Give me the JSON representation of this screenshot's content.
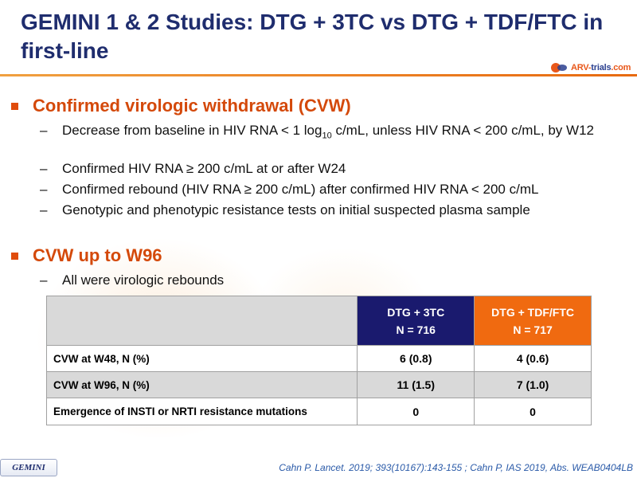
{
  "title": "GEMINI 1 & 2 Studies: DTG + 3TC vs DTG + TDF/FTC in first-line",
  "logo": {
    "part1": "ARV-",
    "part2": "trials",
    "part3": ".com"
  },
  "section1": {
    "heading": "Confirmed virologic withdrawal (CVW)",
    "items": [
      {
        "pre": "Decrease from baseline in HIV RNA < 1 log",
        "sub": "10",
        "post": " c/mL, unless HIV RNA < 200 c/mL, by W12"
      },
      {
        "text": "Confirmed HIV RNA ≥ 200 c/mL at or after W24"
      },
      {
        "text": "Confirmed rebound (HIV RNA ≥ 200 c/mL) after confirmed HIV RNA < 200 c/mL"
      },
      {
        "text": "Genotypic and phenotypic resistance tests on initial suspected plasma sample"
      }
    ]
  },
  "section2": {
    "heading": "CVW up to W96",
    "items": [
      {
        "text": "All were virologic rebounds"
      }
    ]
  },
  "table": {
    "columns": [
      {
        "name": "DTG + 3TC",
        "n": "N = 716",
        "color": "#1a1a6e"
      },
      {
        "name": "DTG + TDF/FTC",
        "n": "N = 717",
        "color": "#f06a10"
      }
    ],
    "rows": [
      {
        "label": "CVW at W48, N (%)",
        "values": [
          "6 (0.8)",
          "4 (0.6)"
        ]
      },
      {
        "label": "CVW at W96, N (%)",
        "values": [
          "11 (1.5)",
          "7 (1.0)"
        ]
      },
      {
        "label": "Emergence of INSTI or NRTI resistance mutations",
        "values": [
          "0",
          "0"
        ]
      }
    ]
  },
  "footer": {
    "badge": "GEMINI",
    "citation": "Cahn P. Lancet. 2019; 393(10167):143-155 ; Cahn P, IAS 2019, Abs. WEAB0404LB"
  }
}
